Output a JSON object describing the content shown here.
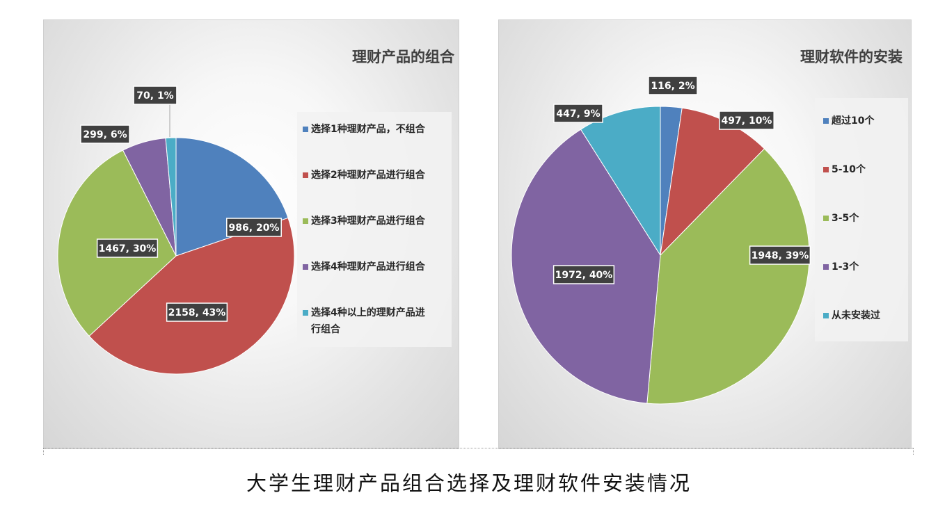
{
  "caption": "大学生理财产品组合选择及理财软件安装情况",
  "chart_data": [
    {
      "type": "pie",
      "title": "理财产品的组合",
      "categories": [
        "选择1种理财产品，不组合",
        "选择2种理财产品进行组合",
        "选择3种理财产品进行组合",
        "选择4种理财产品进行组合",
        "选择4种以上的理财产品进行组合"
      ],
      "values": [
        986,
        2158,
        1467,
        299,
        70
      ],
      "data_labels": [
        "986, 20%",
        "2158, 43%",
        "1467, 30%",
        "299, 6%",
        "70, 1%"
      ],
      "colors": [
        "#4f81bd",
        "#c0504d",
        "#9bbb59",
        "#8064a2",
        "#4bacc6"
      ],
      "legend": {
        "position": "right",
        "entries": [
          [
            "选择1种理财产品，不组合"
          ],
          [
            "选择2种理财产品进行组合"
          ],
          [
            "选择3种理财产品进行组合"
          ],
          [
            "选择4种理财产品进行组合"
          ],
          [
            "选择4种以上的理财产品进",
            "行组合"
          ]
        ]
      }
    },
    {
      "type": "pie",
      "title": "理财软件的安装",
      "categories": [
        "超过10个",
        "5-10个",
        "3-5个",
        "1-3个",
        "从未安装过"
      ],
      "values": [
        116,
        497,
        1948,
        1972,
        447
      ],
      "data_labels": [
        "116, 2%",
        "497, 10%",
        "1948, 39%",
        "1972, 40%",
        "447, 9%"
      ],
      "colors": [
        "#4f81bd",
        "#c0504d",
        "#9bbb59",
        "#8064a2",
        "#4bacc6"
      ],
      "legend": {
        "position": "right",
        "entries": [
          [
            "超过10个"
          ],
          [
            "5-10个"
          ],
          [
            "3-5个"
          ],
          [
            "1-3个"
          ],
          [
            "从未安装过"
          ]
        ]
      }
    }
  ]
}
